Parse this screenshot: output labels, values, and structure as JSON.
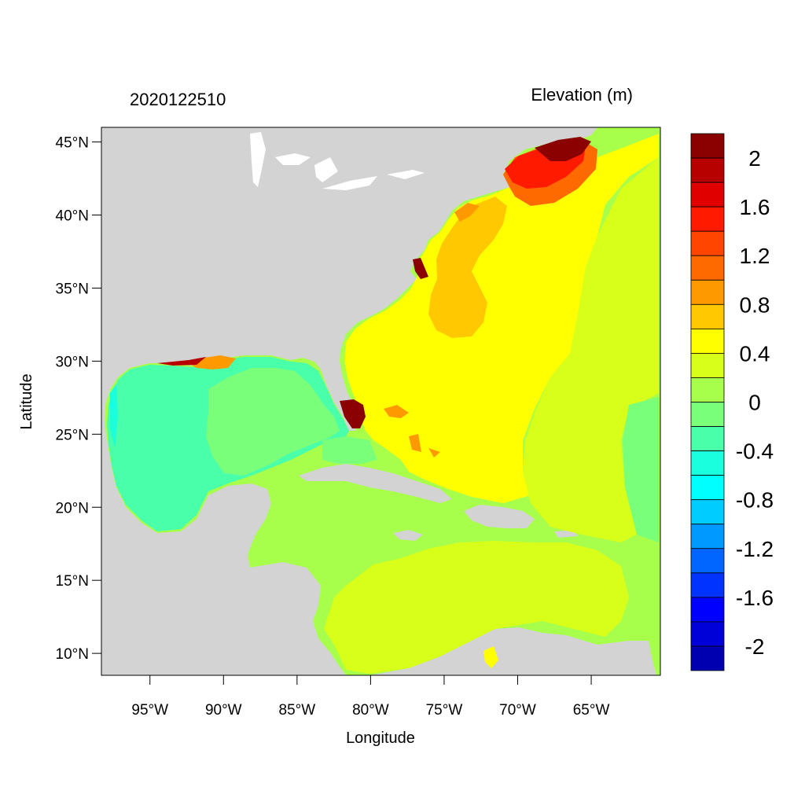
{
  "title_left": "2020122510",
  "title_right": "Elevation (m)",
  "xlabel": "Longitude",
  "ylabel": "Latitude",
  "map": {
    "lon_range": [
      -98.3,
      -60.3
    ],
    "lat_range": [
      8.5,
      46.0
    ],
    "lon_ticks": [
      {
        "value": -95,
        "label": "95°W"
      },
      {
        "value": -90,
        "label": "90°W"
      },
      {
        "value": -85,
        "label": "85°W"
      },
      {
        "value": -80,
        "label": "80°W"
      },
      {
        "value": -75,
        "label": "75°W"
      },
      {
        "value": -70,
        "label": "70°W"
      },
      {
        "value": -65,
        "label": "65°W"
      }
    ],
    "lat_ticks": [
      {
        "value": 45,
        "label": "45°N"
      },
      {
        "value": 40,
        "label": "40°N"
      },
      {
        "value": 35,
        "label": "35°N"
      },
      {
        "value": 30,
        "label": "30°N"
      },
      {
        "value": 25,
        "label": "25°N"
      },
      {
        "value": 20,
        "label": "20°N"
      },
      {
        "value": 15,
        "label": "15°N"
      },
      {
        "value": 10,
        "label": "10°N"
      }
    ],
    "land_color": "#d3d3d3"
  },
  "colorbar": {
    "levels_top_to_bottom": [
      "#8b0000",
      "#b70000",
      "#e00000",
      "#ff1a00",
      "#ff4500",
      "#ff6a00",
      "#ff9900",
      "#ffc800",
      "#ffff00",
      "#d8ff19",
      "#a8ff4b",
      "#7aff7a",
      "#4affaa",
      "#1affdd",
      "#00ffff",
      "#00ccff",
      "#0099ff",
      "#0066ff",
      "#0033ff",
      "#0000ff",
      "#0000d8",
      "#0000b0"
    ],
    "labels": [
      "2",
      "1.6",
      "1.2",
      "0.8",
      "0.4",
      "0",
      "-0.4",
      "-0.8",
      "-1.2",
      "-1.6",
      "-2"
    ]
  }
}
